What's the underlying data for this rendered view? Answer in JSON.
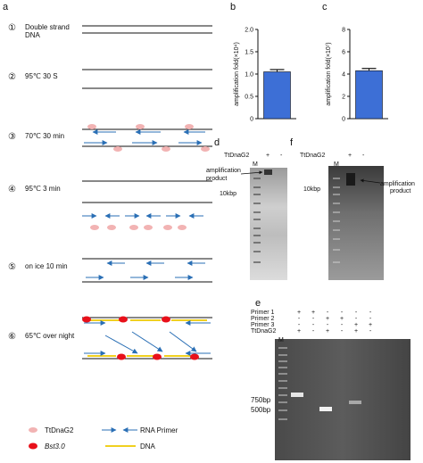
{
  "panels": {
    "a": "a",
    "b": "b",
    "c": "c",
    "d": "d",
    "e": "e",
    "f": "f"
  },
  "steps": [
    {
      "num": "①",
      "label": "Double strand",
      "label2": "DNA"
    },
    {
      "num": "②",
      "label": "95℃  30 S"
    },
    {
      "num": "③",
      "label": "70℃  30 min"
    },
    {
      "num": "④",
      "label": "95℃  3 min"
    },
    {
      "num": "⑤",
      "label": "on ice  10 min"
    },
    {
      "num": "⑥",
      "label": "65℃  over night"
    }
  ],
  "legend": {
    "ttdnag2": "TtDnaG2",
    "rna_primer": "RNA Primer",
    "bst": "Bst3.0",
    "dna": "DNA"
  },
  "colors": {
    "ttdnag2": "#f2b3b3",
    "bst": "#e8101a",
    "dna": "#f0d020",
    "arrow": "#2a6fb5",
    "bar": "#3d6fd6"
  },
  "chart_data": [
    {
      "type": "bar",
      "panel": "b",
      "categories": [
        ""
      ],
      "values": [
        1.05
      ],
      "error": [
        0.05
      ],
      "ylabel": "amplification fold(×10⁴)",
      "ylim": [
        0,
        2
      ],
      "yticks": [
        "0",
        "0.5",
        "1.0",
        "1.5",
        "2.0"
      ]
    },
    {
      "type": "bar",
      "panel": "c",
      "categories": [
        ""
      ],
      "values": [
        4.3
      ],
      "error": [
        0.2
      ],
      "ylabel": "amplification fold(×10⁷)",
      "ylim": [
        0,
        8
      ],
      "yticks": [
        "0",
        "2",
        "4",
        "6",
        "8"
      ]
    }
  ],
  "gel_d": {
    "header": "TtDnaG2",
    "plus": "+",
    "minus": "-",
    "marker": "M",
    "annotation": "amplification product",
    "size": "10kbp"
  },
  "gel_f": {
    "header": "TtDnaG2",
    "plus": "+",
    "minus": "-",
    "marker": "M",
    "annotation": "amplification product",
    "size": "10kbp"
  },
  "gel_e": {
    "rows": [
      "Primer 1",
      "Primer 2",
      "Primer 3",
      "TtDnaG2"
    ],
    "signs": [
      [
        "+",
        "+",
        "-",
        "-",
        "-",
        "-"
      ],
      [
        "-",
        "-",
        "+",
        "+",
        "-",
        "-"
      ],
      [
        "-",
        "-",
        "-",
        "-",
        "+",
        "+"
      ],
      [
        "+",
        "-",
        "+",
        "-",
        "+",
        "-"
      ]
    ],
    "marker": "M",
    "sizes": [
      "750bp",
      "500bp"
    ]
  }
}
